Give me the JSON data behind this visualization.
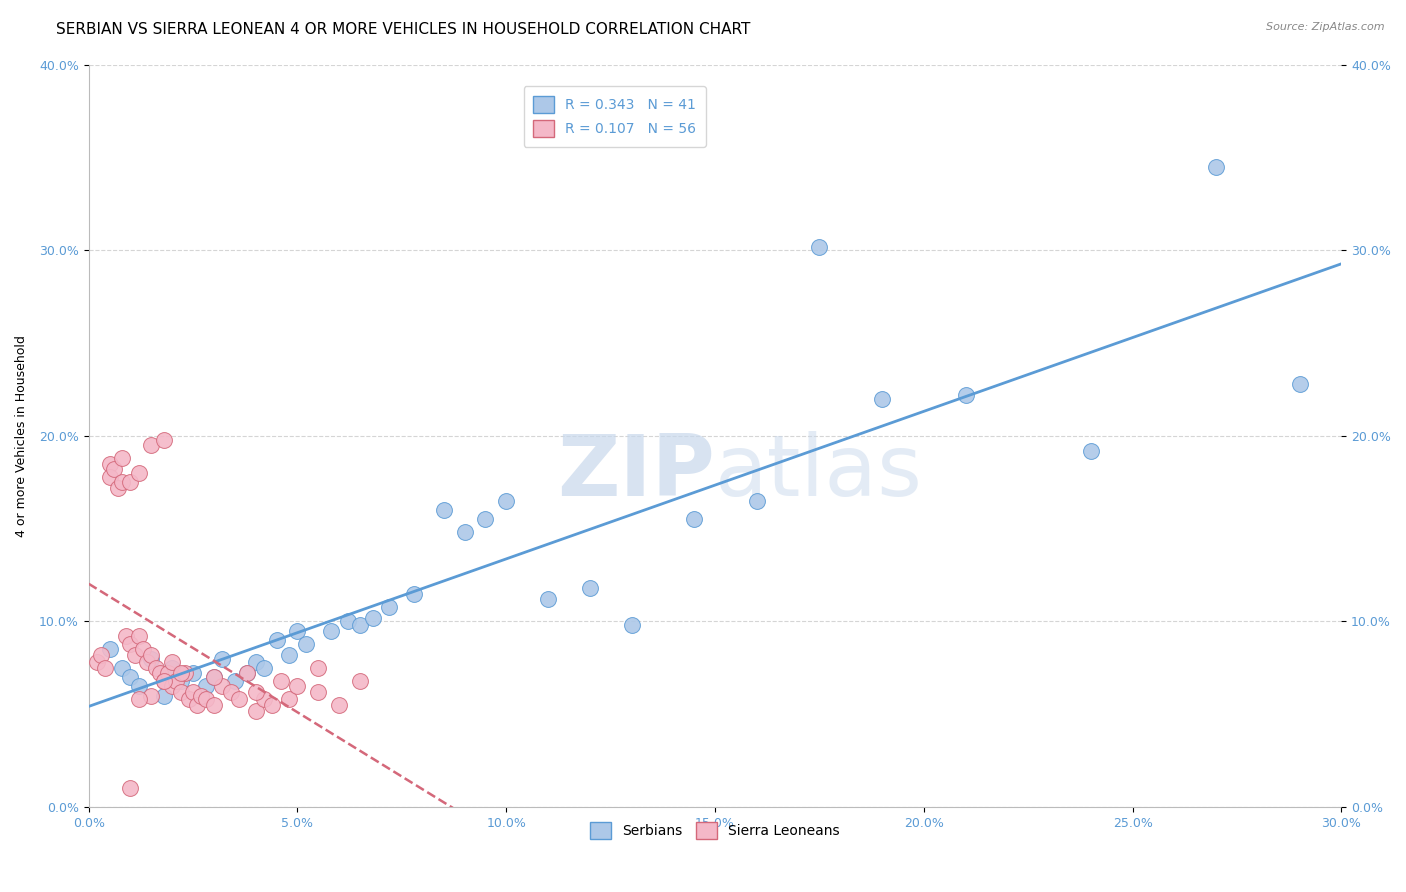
{
  "title": "SERBIAN VS SIERRA LEONEAN 4 OR MORE VEHICLES IN HOUSEHOLD CORRELATION CHART",
  "source": "Source: ZipAtlas.com",
  "ylabel_label": "4 or more Vehicles in Household",
  "xlim": [
    0.0,
    0.3
  ],
  "ylim": [
    0.0,
    0.4
  ],
  "watermark_zip": "ZIP",
  "watermark_atlas": "atlas",
  "legend_label1": "R = 0.343   N = 41",
  "legend_label2": "R = 0.107   N = 56",
  "color_serbian": "#adc8e8",
  "color_sierra": "#f4b8c8",
  "color_serbian_line": "#5b9bd5",
  "color_sierra_line": "#d4687a",
  "bottom_legend1": "Serbians",
  "bottom_legend2": "Sierra Leoneans",
  "serbian_x": [
    0.005,
    0.008,
    0.01,
    0.012,
    0.015,
    0.018,
    0.02,
    0.022,
    0.025,
    0.028,
    0.03,
    0.032,
    0.035,
    0.038,
    0.04,
    0.042,
    0.045,
    0.048,
    0.05,
    0.052,
    0.058,
    0.062,
    0.065,
    0.068,
    0.072,
    0.078,
    0.085,
    0.09,
    0.095,
    0.1,
    0.11,
    0.12,
    0.13,
    0.145,
    0.16,
    0.175,
    0.19,
    0.21,
    0.24,
    0.27,
    0.29
  ],
  "serbian_y": [
    0.085,
    0.075,
    0.07,
    0.065,
    0.08,
    0.06,
    0.075,
    0.068,
    0.072,
    0.065,
    0.07,
    0.08,
    0.068,
    0.072,
    0.078,
    0.075,
    0.09,
    0.082,
    0.095,
    0.088,
    0.095,
    0.1,
    0.098,
    0.102,
    0.108,
    0.115,
    0.16,
    0.148,
    0.155,
    0.165,
    0.112,
    0.118,
    0.098,
    0.155,
    0.165,
    0.302,
    0.22,
    0.222,
    0.192,
    0.345,
    0.228
  ],
  "sierra_x": [
    0.002,
    0.003,
    0.004,
    0.005,
    0.005,
    0.006,
    0.007,
    0.008,
    0.008,
    0.009,
    0.01,
    0.01,
    0.011,
    0.012,
    0.012,
    0.013,
    0.014,
    0.015,
    0.015,
    0.016,
    0.017,
    0.018,
    0.018,
    0.019,
    0.02,
    0.02,
    0.021,
    0.022,
    0.023,
    0.024,
    0.025,
    0.026,
    0.027,
    0.028,
    0.03,
    0.032,
    0.034,
    0.036,
    0.038,
    0.04,
    0.042,
    0.044,
    0.046,
    0.048,
    0.05,
    0.055,
    0.06,
    0.065,
    0.055,
    0.04,
    0.03,
    0.022,
    0.018,
    0.015,
    0.012,
    0.01
  ],
  "sierra_y": [
    0.078,
    0.082,
    0.075,
    0.185,
    0.178,
    0.182,
    0.172,
    0.175,
    0.188,
    0.092,
    0.088,
    0.175,
    0.082,
    0.18,
    0.092,
    0.085,
    0.078,
    0.195,
    0.082,
    0.075,
    0.072,
    0.068,
    0.198,
    0.072,
    0.065,
    0.078,
    0.068,
    0.062,
    0.072,
    0.058,
    0.062,
    0.055,
    0.06,
    0.058,
    0.055,
    0.065,
    0.062,
    0.058,
    0.072,
    0.052,
    0.058,
    0.055,
    0.068,
    0.058,
    0.065,
    0.062,
    0.055,
    0.068,
    0.075,
    0.062,
    0.07,
    0.072,
    0.068,
    0.06,
    0.058,
    0.01
  ],
  "title_fontsize": 11,
  "axis_fontsize": 9,
  "tick_fontsize": 9,
  "source_fontsize": 8
}
